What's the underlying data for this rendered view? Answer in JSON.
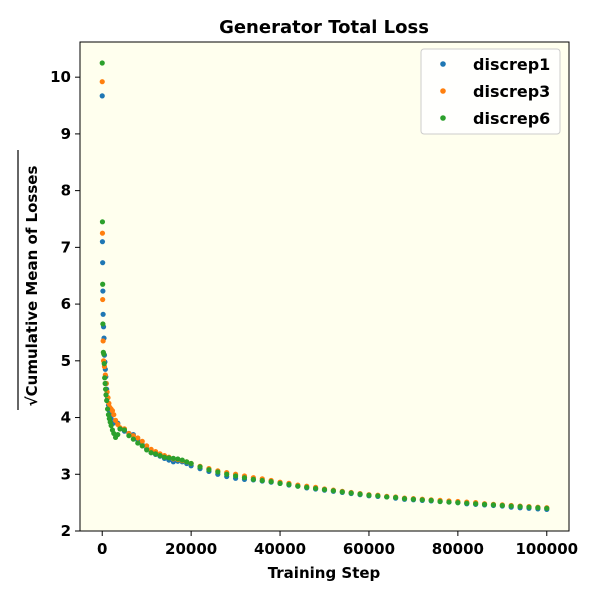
{
  "chart_data": {
    "type": "scatter",
    "title": "Generator Total Loss",
    "xlabel": "Training Step",
    "ylabel": "Cumulative Mean of Losses",
    "ylabel_prefix": "√",
    "xlim": [
      -5000,
      105000
    ],
    "ylim": [
      2.0,
      10.62
    ],
    "xticks": [
      0,
      20000,
      40000,
      60000,
      80000,
      100000
    ],
    "yticks": [
      2,
      3,
      4,
      5,
      6,
      7,
      8,
      9,
      10
    ],
    "grid": false,
    "legend_position": "top-right",
    "background_color": "#ffffee",
    "series": [
      {
        "name": "discrep1",
        "color": "#1f77b4",
        "points": [
          [
            0,
            9.67
          ],
          [
            50,
            7.1
          ],
          [
            100,
            6.73
          ],
          [
            150,
            6.23
          ],
          [
            200,
            5.82
          ],
          [
            300,
            5.6
          ],
          [
            400,
            5.4
          ],
          [
            500,
            5.1
          ],
          [
            600,
            4.98
          ],
          [
            700,
            4.85
          ],
          [
            800,
            4.72
          ],
          [
            900,
            4.6
          ],
          [
            1000,
            4.5
          ],
          [
            1200,
            4.35
          ],
          [
            1400,
            4.22
          ],
          [
            1600,
            4.12
          ],
          [
            1800,
            4.05
          ],
          [
            2000,
            3.98
          ],
          [
            2500,
            3.9
          ],
          [
            3000,
            3.92
          ],
          [
            3500,
            3.9
          ],
          [
            4000,
            3.8
          ],
          [
            5000,
            3.76
          ],
          [
            6000,
            3.72
          ],
          [
            7000,
            3.7
          ],
          [
            8000,
            3.6
          ],
          [
            9000,
            3.52
          ],
          [
            10000,
            3.45
          ],
          [
            11000,
            3.38
          ],
          [
            12000,
            3.35
          ],
          [
            13000,
            3.32
          ],
          [
            14000,
            3.28
          ],
          [
            15000,
            3.25
          ],
          [
            16000,
            3.22
          ],
          [
            17000,
            3.23
          ],
          [
            18000,
            3.22
          ],
          [
            19000,
            3.19
          ],
          [
            20000,
            3.15
          ],
          [
            22000,
            3.1
          ],
          [
            24000,
            3.05
          ],
          [
            26000,
            3.0
          ],
          [
            28000,
            2.96
          ],
          [
            30000,
            2.93
          ],
          [
            32000,
            2.91
          ],
          [
            34000,
            2.9
          ],
          [
            36000,
            2.88
          ],
          [
            38000,
            2.86
          ],
          [
            40000,
            2.84
          ],
          [
            42000,
            2.81
          ],
          [
            44000,
            2.79
          ],
          [
            46000,
            2.76
          ],
          [
            48000,
            2.74
          ],
          [
            50000,
            2.72
          ],
          [
            52000,
            2.7
          ],
          [
            54000,
            2.68
          ],
          [
            56000,
            2.66
          ],
          [
            58000,
            2.64
          ],
          [
            60000,
            2.62
          ],
          [
            62000,
            2.61
          ],
          [
            64000,
            2.6
          ],
          [
            66000,
            2.58
          ],
          [
            68000,
            2.56
          ],
          [
            70000,
            2.55
          ],
          [
            72000,
            2.54
          ],
          [
            74000,
            2.53
          ],
          [
            76000,
            2.52
          ],
          [
            78000,
            2.51
          ],
          [
            80000,
            2.5
          ],
          [
            82000,
            2.48
          ],
          [
            84000,
            2.47
          ],
          [
            86000,
            2.46
          ],
          [
            88000,
            2.45
          ],
          [
            90000,
            2.44
          ],
          [
            92000,
            2.42
          ],
          [
            94000,
            2.41
          ],
          [
            96000,
            2.4
          ],
          [
            98000,
            2.39
          ],
          [
            100000,
            2.38
          ]
        ]
      },
      {
        "name": "discrep3",
        "color": "#ff7f0e",
        "points": [
          [
            0,
            9.92
          ],
          [
            50,
            7.25
          ],
          [
            100,
            6.08
          ],
          [
            200,
            5.35
          ],
          [
            300,
            5.0
          ],
          [
            500,
            4.9
          ],
          [
            700,
            4.75
          ],
          [
            900,
            4.6
          ],
          [
            1100,
            4.45
          ],
          [
            1300,
            4.35
          ],
          [
            1500,
            4.25
          ],
          [
            1700,
            4.18
          ],
          [
            2000,
            4.15
          ],
          [
            2300,
            4.12
          ],
          [
            2600,
            4.05
          ],
          [
            3000,
            3.95
          ],
          [
            3500,
            3.88
          ],
          [
            4000,
            3.82
          ],
          [
            5000,
            3.8
          ],
          [
            6000,
            3.72
          ],
          [
            7000,
            3.68
          ],
          [
            8000,
            3.64
          ],
          [
            9000,
            3.58
          ],
          [
            10000,
            3.5
          ],
          [
            11000,
            3.44
          ],
          [
            12000,
            3.4
          ],
          [
            13000,
            3.36
          ],
          [
            14000,
            3.33
          ],
          [
            15000,
            3.3
          ],
          [
            16000,
            3.27
          ],
          [
            17000,
            3.26
          ],
          [
            18000,
            3.24
          ],
          [
            19000,
            3.22
          ],
          [
            20000,
            3.19
          ],
          [
            22000,
            3.14
          ],
          [
            24000,
            3.1
          ],
          [
            26000,
            3.06
          ],
          [
            28000,
            3.03
          ],
          [
            30000,
            3.0
          ],
          [
            32000,
            2.97
          ],
          [
            34000,
            2.94
          ],
          [
            36000,
            2.92
          ],
          [
            38000,
            2.89
          ],
          [
            40000,
            2.86
          ],
          [
            42000,
            2.84
          ],
          [
            44000,
            2.81
          ],
          [
            46000,
            2.79
          ],
          [
            48000,
            2.77
          ],
          [
            50000,
            2.74
          ],
          [
            52000,
            2.72
          ],
          [
            54000,
            2.7
          ],
          [
            56000,
            2.68
          ],
          [
            58000,
            2.66
          ],
          [
            60000,
            2.64
          ],
          [
            62000,
            2.63
          ],
          [
            64000,
            2.61
          ],
          [
            66000,
            2.6
          ],
          [
            68000,
            2.58
          ],
          [
            70000,
            2.57
          ],
          [
            72000,
            2.56
          ],
          [
            74000,
            2.55
          ],
          [
            76000,
            2.54
          ],
          [
            78000,
            2.53
          ],
          [
            80000,
            2.52
          ],
          [
            82000,
            2.51
          ],
          [
            84000,
            2.5
          ],
          [
            86000,
            2.48
          ],
          [
            88000,
            2.47
          ],
          [
            90000,
            2.46
          ],
          [
            92000,
            2.45
          ],
          [
            94000,
            2.44
          ],
          [
            96000,
            2.43
          ],
          [
            98000,
            2.42
          ],
          [
            100000,
            2.41
          ]
        ]
      },
      {
        "name": "discrep6",
        "color": "#2ca02c",
        "points": [
          [
            0,
            10.25
          ],
          [
            50,
            7.45
          ],
          [
            100,
            6.35
          ],
          [
            150,
            5.65
          ],
          [
            250,
            5.15
          ],
          [
            350,
            5.12
          ],
          [
            450,
            4.95
          ],
          [
            550,
            4.7
          ],
          [
            650,
            4.6
          ],
          [
            750,
            4.5
          ],
          [
            850,
            4.4
          ],
          [
            1000,
            4.3
          ],
          [
            1200,
            4.15
          ],
          [
            1400,
            4.05
          ],
          [
            1600,
            3.98
          ],
          [
            1800,
            3.92
          ],
          [
            2000,
            3.86
          ],
          [
            2300,
            3.78
          ],
          [
            2600,
            3.72
          ],
          [
            3000,
            3.65
          ],
          [
            3500,
            3.7
          ],
          [
            4000,
            3.8
          ],
          [
            5000,
            3.78
          ],
          [
            6000,
            3.68
          ],
          [
            7000,
            3.62
          ],
          [
            8000,
            3.55
          ],
          [
            9000,
            3.5
          ],
          [
            10000,
            3.43
          ],
          [
            11000,
            3.38
          ],
          [
            12000,
            3.36
          ],
          [
            13000,
            3.33
          ],
          [
            14000,
            3.3
          ],
          [
            15000,
            3.29
          ],
          [
            16000,
            3.28
          ],
          [
            17000,
            3.27
          ],
          [
            18000,
            3.25
          ],
          [
            19000,
            3.22
          ],
          [
            20000,
            3.19
          ],
          [
            22000,
            3.13
          ],
          [
            24000,
            3.08
          ],
          [
            26000,
            3.04
          ],
          [
            28000,
            3.0
          ],
          [
            30000,
            2.97
          ],
          [
            32000,
            2.94
          ],
          [
            34000,
            2.91
          ],
          [
            36000,
            2.89
          ],
          [
            38000,
            2.87
          ],
          [
            40000,
            2.84
          ],
          [
            42000,
            2.82
          ],
          [
            44000,
            2.79
          ],
          [
            46000,
            2.77
          ],
          [
            48000,
            2.75
          ],
          [
            50000,
            2.73
          ],
          [
            52000,
            2.71
          ],
          [
            54000,
            2.69
          ],
          [
            56000,
            2.67
          ],
          [
            58000,
            2.65
          ],
          [
            60000,
            2.63
          ],
          [
            62000,
            2.62
          ],
          [
            64000,
            2.6
          ],
          [
            66000,
            2.59
          ],
          [
            68000,
            2.57
          ],
          [
            70000,
            2.56
          ],
          [
            72000,
            2.55
          ],
          [
            74000,
            2.54
          ],
          [
            76000,
            2.52
          ],
          [
            78000,
            2.51
          ],
          [
            80000,
            2.5
          ],
          [
            82000,
            2.49
          ],
          [
            84000,
            2.48
          ],
          [
            86000,
            2.47
          ],
          [
            88000,
            2.46
          ],
          [
            90000,
            2.45
          ],
          [
            92000,
            2.44
          ],
          [
            94000,
            2.43
          ],
          [
            96000,
            2.42
          ],
          [
            98000,
            2.41
          ],
          [
            100000,
            2.4
          ]
        ]
      }
    ]
  }
}
